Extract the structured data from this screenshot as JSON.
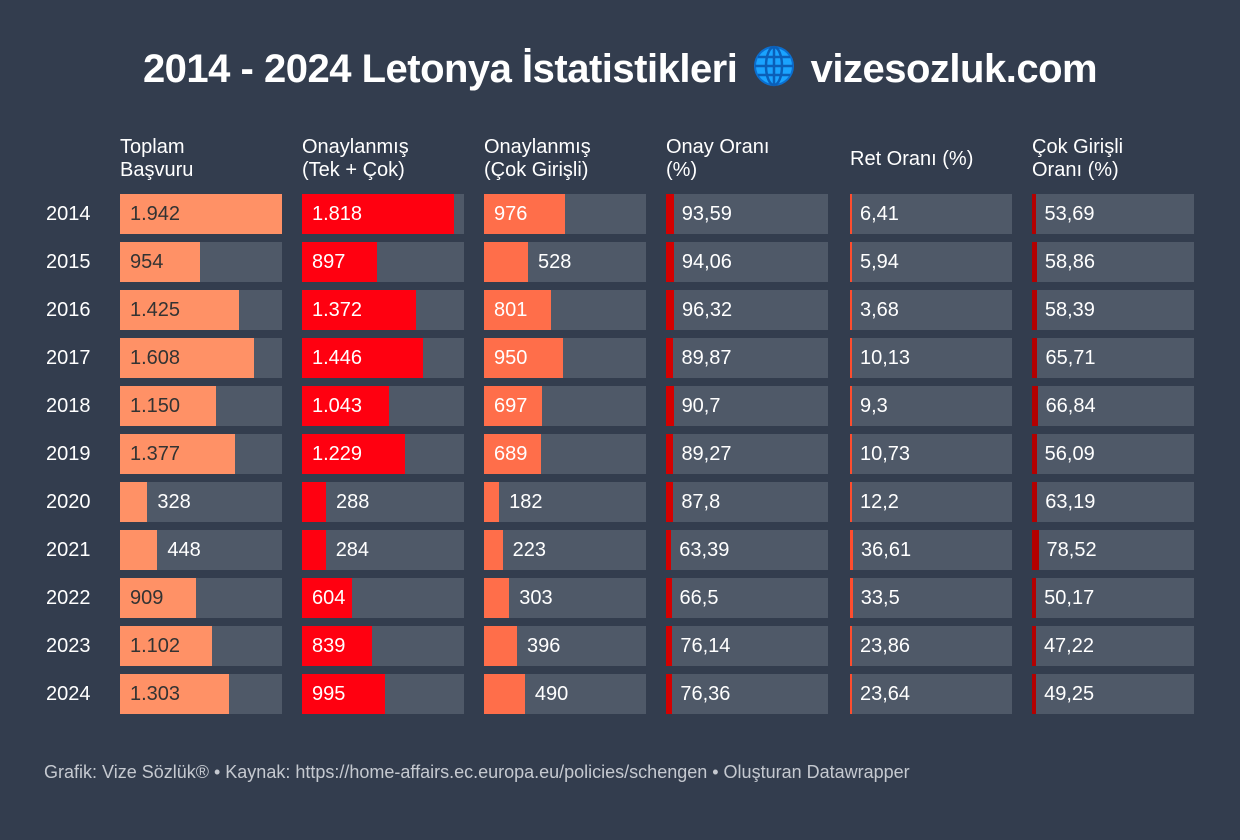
{
  "title_left": "2014 - 2024 Letonya İstatistikleri",
  "title_icon": "globe-icon",
  "title_right": "vizesozluk.com",
  "footer": "Grafik: Vize Sözlük® • Kaynak: https://home-affairs.ec.europa.eu/policies/schengen • Oluşturan Datawrapper",
  "chart_data": {
    "type": "table",
    "title": "2014 - 2024 Letonya İstatistikleri 🌐 vizesozluk.com",
    "bar_domain": [
      0,
      1942
    ],
    "columns": [
      {
        "key": "toplam",
        "header_line1": "Toplam",
        "header_line2": "Başvuru",
        "color": "#ff9166",
        "label_dark": true
      },
      {
        "key": "onay",
        "header_line1": "Onaylanmış",
        "header_line2": "(Tek + Çok)",
        "color": "#ff0010",
        "label_dark": false
      },
      {
        "key": "cok",
        "header_line1": "Onaylanmış",
        "header_line2": "(Çok Girişli)",
        "color": "#ff6e4a",
        "label_dark": false
      },
      {
        "key": "onay_orani",
        "header_line1": "Onay Oranı",
        "header_line2": "(%)",
        "color": "#d40000",
        "label_dark": false
      },
      {
        "key": "ret_orani",
        "header_line1": "Ret Oranı (%)",
        "header_line2": "",
        "color": "#ff4d2e",
        "label_dark": false
      },
      {
        "key": "cok_orani",
        "header_line1": "Çok Girişli",
        "header_line2": "Oranı (%)",
        "color": "#b30000",
        "label_dark": false
      }
    ],
    "years": [
      "2014",
      "2015",
      "2016",
      "2017",
      "2018",
      "2019",
      "2020",
      "2021",
      "2022",
      "2023",
      "2024"
    ],
    "values": {
      "toplam": [
        1942,
        954,
        1425,
        1608,
        1150,
        1377,
        328,
        448,
        909,
        1102,
        1303
      ],
      "onay": [
        1818,
        897,
        1372,
        1446,
        1043,
        1229,
        288,
        284,
        604,
        839,
        995
      ],
      "cok": [
        976,
        528,
        801,
        950,
        697,
        689,
        182,
        223,
        303,
        396,
        490
      ],
      "onay_orani": [
        93.59,
        94.06,
        96.32,
        89.87,
        90.7,
        89.27,
        87.8,
        63.39,
        66.5,
        76.14,
        76.36
      ],
      "ret_orani": [
        6.41,
        5.94,
        3.68,
        10.13,
        9.3,
        10.73,
        12.2,
        36.61,
        33.5,
        23.86,
        23.64
      ],
      "cok_orani": [
        53.69,
        58.86,
        58.39,
        65.71,
        66.84,
        56.09,
        63.19,
        78.52,
        50.17,
        47.22,
        49.25
      ]
    },
    "labels": {
      "toplam": [
        "1.942",
        "954",
        "1.425",
        "1.608",
        "1.150",
        "1.377",
        "328",
        "448",
        "909",
        "1.102",
        "1.303"
      ],
      "onay": [
        "1.818",
        "897",
        "1.372",
        "1.446",
        "1.043",
        "1.229",
        "288",
        "284",
        "604",
        "839",
        "995"
      ],
      "cok": [
        "976",
        "528",
        "801",
        "950",
        "697",
        "689",
        "182",
        "223",
        "303",
        "396",
        "490"
      ],
      "onay_orani": [
        "93,59",
        "94,06",
        "96,32",
        "89,87",
        "90,7",
        "89,27",
        "87,8",
        "63,39",
        "66,5",
        "76,14",
        "76,36"
      ],
      "ret_orani": [
        "6,41",
        "5,94",
        "3,68",
        "10,13",
        "9,3",
        "10,73",
        "12,2",
        "36,61",
        "33,5",
        "23,86",
        "23,64"
      ],
      "cok_orani": [
        "53,69",
        "58,86",
        "58,39",
        "65,71",
        "66,84",
        "56,09",
        "63,19",
        "78,52",
        "50,17",
        "47,22",
        "49,25"
      ]
    }
  }
}
